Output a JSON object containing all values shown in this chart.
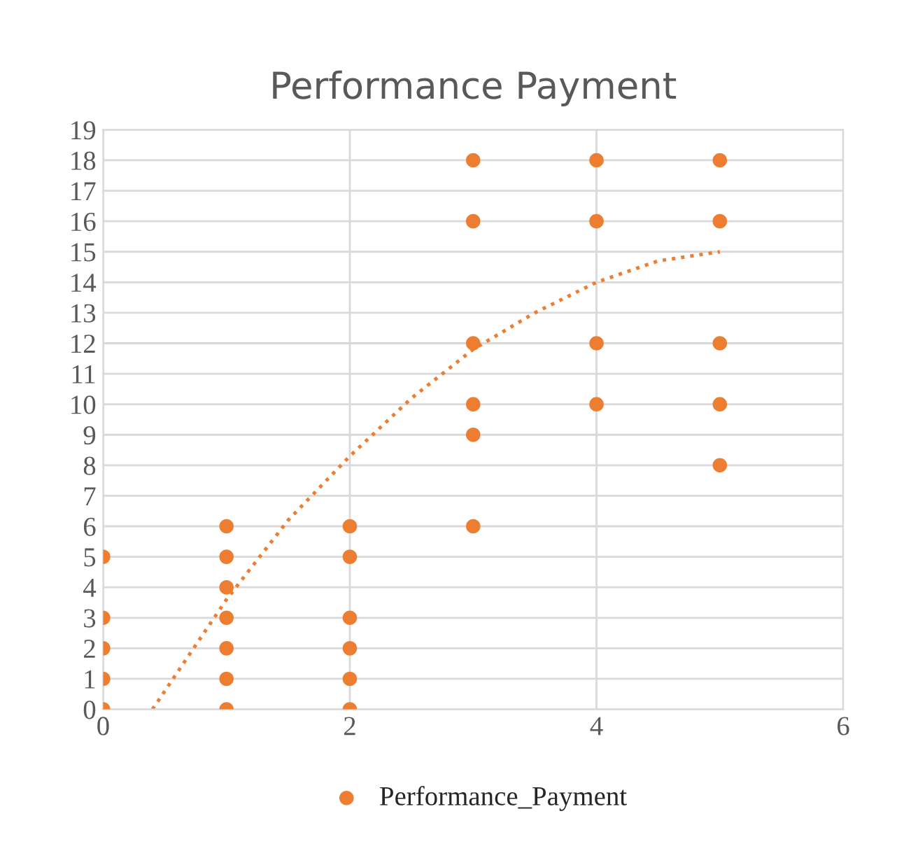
{
  "chart_data": {
    "type": "scatter",
    "title": "Performance Payment",
    "xlim": [
      0,
      6
    ],
    "xticks": [
      0,
      2,
      4,
      6
    ],
    "ylim": [
      0,
      19
    ],
    "yticks": [
      0,
      1,
      2,
      3,
      4,
      5,
      6,
      7,
      8,
      9,
      10,
      11,
      12,
      13,
      14,
      15,
      16,
      17,
      18,
      19
    ],
    "grid": true,
    "legend": "bottom",
    "marker": "circle",
    "series": [
      {
        "name": "Performance_Payment",
        "color": "#ed7d31",
        "x": [
          0,
          0,
          0,
          0,
          0,
          1,
          1,
          1,
          1,
          1,
          1,
          1,
          2,
          2,
          2,
          2,
          2,
          2,
          3,
          3,
          3,
          3,
          3,
          3,
          4,
          4,
          4,
          4,
          5,
          5,
          5,
          5,
          5
        ],
        "values": [
          0,
          1,
          2,
          3,
          5,
          0,
          1,
          2,
          3,
          4,
          5,
          6,
          0,
          1,
          2,
          3,
          5,
          6,
          6,
          9,
          10,
          12,
          16,
          18,
          10,
          12,
          16,
          18,
          8,
          10,
          12,
          16,
          18
        ]
      },
      {
        "type": "line",
        "color": "#ed7d31",
        "line_style": "dotted",
        "marker": "none",
        "x": [
          0.4,
          1,
          1.5,
          2,
          2.5,
          3,
          3.5,
          4,
          4.5,
          5
        ],
        "values": [
          0,
          3.6,
          6.2,
          8.3,
          10.2,
          11.8,
          13,
          14,
          14.7,
          15
        ]
      }
    ]
  }
}
